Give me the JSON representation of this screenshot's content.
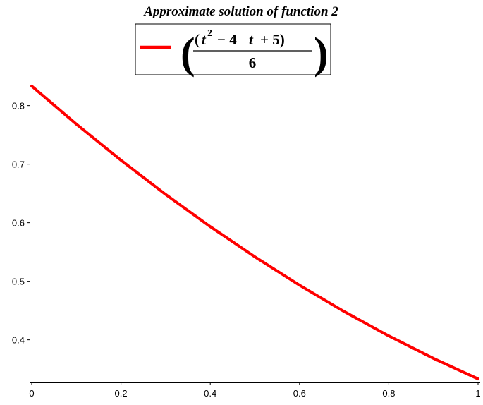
{
  "chart_data": {
    "type": "line",
    "title": "Approximate solution of function 2",
    "xlabel": "",
    "ylabel": "",
    "xlim": [
      0,
      1
    ],
    "ylim": [
      0.333,
      0.84
    ],
    "x_ticks": [
      "0",
      "0.2",
      "0.4",
      "0.6",
      "0.8",
      "1"
    ],
    "y_ticks": [
      "0.4",
      "0.5",
      "0.6",
      "0.7",
      "0.8"
    ],
    "grid": false,
    "legend_position": "top",
    "series": [
      {
        "name": "(t^2 - 4 t + 5) / 6",
        "color": "#ff0000",
        "x": [
          0,
          0.1,
          0.2,
          0.3,
          0.4,
          0.5,
          0.6,
          0.7,
          0.8,
          0.9,
          1.0
        ],
        "y": [
          0.8333,
          0.7683,
          0.7067,
          0.6483,
          0.5933,
          0.5417,
          0.4933,
          0.4483,
          0.4067,
          0.3683,
          0.3333
        ]
      }
    ]
  },
  "legend": {
    "open_paren": "(",
    "close_paren": ")",
    "numerator_var_1": "t",
    "numerator_exp": "2",
    "numerator_op_1": "− 4",
    "numerator_var_2": "t",
    "numerator_op_2": "+ 5)",
    "denominator": "6"
  }
}
